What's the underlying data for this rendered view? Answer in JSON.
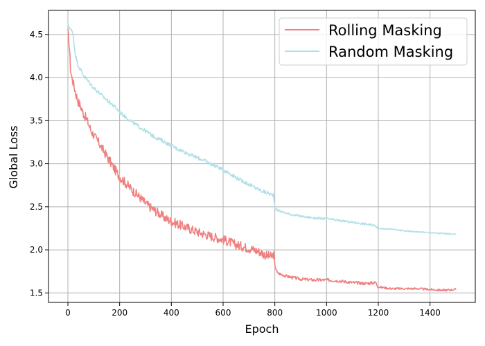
{
  "chart_data": {
    "type": "line",
    "title": "",
    "xlabel": "Epoch",
    "ylabel": "Global Loss",
    "xlim": [
      -75,
      1575
    ],
    "ylim": [
      1.39,
      4.78
    ],
    "xticks": [
      0,
      200,
      400,
      600,
      800,
      1000,
      1200,
      1400
    ],
    "yticks": [
      1.5,
      2.0,
      2.5,
      3.0,
      3.5,
      4.0,
      4.5
    ],
    "xtick_labels": [
      "0",
      "200",
      "400",
      "600",
      "800",
      "1000",
      "1200",
      "1400"
    ],
    "ytick_labels": [
      "1.5",
      "2.0",
      "2.5",
      "3.0",
      "3.5",
      "4.0",
      "4.5"
    ],
    "grid": true,
    "legend_position": "top-right",
    "series": [
      {
        "name": "Rolling Masking",
        "color": "#f08080",
        "points": [
          [
            0,
            4.52
          ],
          [
            5,
            4.4
          ],
          [
            10,
            4.1
          ],
          [
            15,
            4.0
          ],
          [
            20,
            3.95
          ],
          [
            30,
            3.82
          ],
          [
            40,
            3.72
          ],
          [
            50,
            3.66
          ],
          [
            60,
            3.58
          ],
          [
            70,
            3.53
          ],
          [
            80,
            3.46
          ],
          [
            90,
            3.38
          ],
          [
            100,
            3.33
          ],
          [
            120,
            3.24
          ],
          [
            140,
            3.14
          ],
          [
            160,
            3.04
          ],
          [
            180,
            2.94
          ],
          [
            200,
            2.85
          ],
          [
            225,
            2.77
          ],
          [
            250,
            2.69
          ],
          [
            275,
            2.62
          ],
          [
            300,
            2.54
          ],
          [
            325,
            2.48
          ],
          [
            350,
            2.43
          ],
          [
            375,
            2.37
          ],
          [
            400,
            2.33
          ],
          [
            450,
            2.27
          ],
          [
            500,
            2.21
          ],
          [
            550,
            2.16
          ],
          [
            600,
            2.12
          ],
          [
            650,
            2.06
          ],
          [
            700,
            2.02
          ],
          [
            740,
            1.98
          ],
          [
            770,
            1.93
          ],
          [
            790,
            1.92
          ],
          [
            795,
            1.96
          ],
          [
            800,
            1.82
          ],
          [
            810,
            1.73
          ],
          [
            850,
            1.69
          ],
          [
            900,
            1.66
          ],
          [
            950,
            1.65
          ],
          [
            1000,
            1.65
          ],
          [
            1050,
            1.64
          ],
          [
            1100,
            1.62
          ],
          [
            1150,
            1.61
          ],
          [
            1190,
            1.62
          ],
          [
            1200,
            1.57
          ],
          [
            1250,
            1.55
          ],
          [
            1300,
            1.55
          ],
          [
            1350,
            1.55
          ],
          [
            1400,
            1.54
          ],
          [
            1450,
            1.53
          ],
          [
            1500,
            1.54
          ]
        ]
      },
      {
        "name": "Random Masking",
        "color": "#b0e0e6",
        "points": [
          [
            0,
            4.62
          ],
          [
            10,
            4.56
          ],
          [
            20,
            4.51
          ],
          [
            25,
            4.35
          ],
          [
            30,
            4.25
          ],
          [
            40,
            4.14
          ],
          [
            60,
            4.03
          ],
          [
            80,
            3.95
          ],
          [
            100,
            3.88
          ],
          [
            125,
            3.81
          ],
          [
            150,
            3.74
          ],
          [
            175,
            3.68
          ],
          [
            200,
            3.6
          ],
          [
            225,
            3.54
          ],
          [
            250,
            3.48
          ],
          [
            275,
            3.43
          ],
          [
            300,
            3.38
          ],
          [
            325,
            3.33
          ],
          [
            350,
            3.29
          ],
          [
            375,
            3.25
          ],
          [
            400,
            3.21
          ],
          [
            425,
            3.17
          ],
          [
            450,
            3.14
          ],
          [
            475,
            3.1
          ],
          [
            500,
            3.07
          ],
          [
            525,
            3.04
          ],
          [
            550,
            3.0
          ],
          [
            575,
            2.97
          ],
          [
            600,
            2.93
          ],
          [
            625,
            2.89
          ],
          [
            650,
            2.84
          ],
          [
            675,
            2.8
          ],
          [
            700,
            2.76
          ],
          [
            725,
            2.72
          ],
          [
            750,
            2.68
          ],
          [
            775,
            2.66
          ],
          [
            790,
            2.63
          ],
          [
            795,
            2.65
          ],
          [
            800,
            2.49
          ],
          [
            810,
            2.46
          ],
          [
            850,
            2.42
          ],
          [
            900,
            2.39
          ],
          [
            950,
            2.37
          ],
          [
            1000,
            2.36
          ],
          [
            1050,
            2.34
          ],
          [
            1100,
            2.32
          ],
          [
            1150,
            2.3
          ],
          [
            1190,
            2.28
          ],
          [
            1200,
            2.25
          ],
          [
            1250,
            2.24
          ],
          [
            1300,
            2.22
          ],
          [
            1350,
            2.21
          ],
          [
            1400,
            2.2
          ],
          [
            1450,
            2.19
          ],
          [
            1500,
            2.18
          ]
        ]
      }
    ]
  },
  "style": {
    "axis_color": "#000000",
    "grid_color": "#b0b0b0",
    "legend_border": "#cccccc"
  }
}
